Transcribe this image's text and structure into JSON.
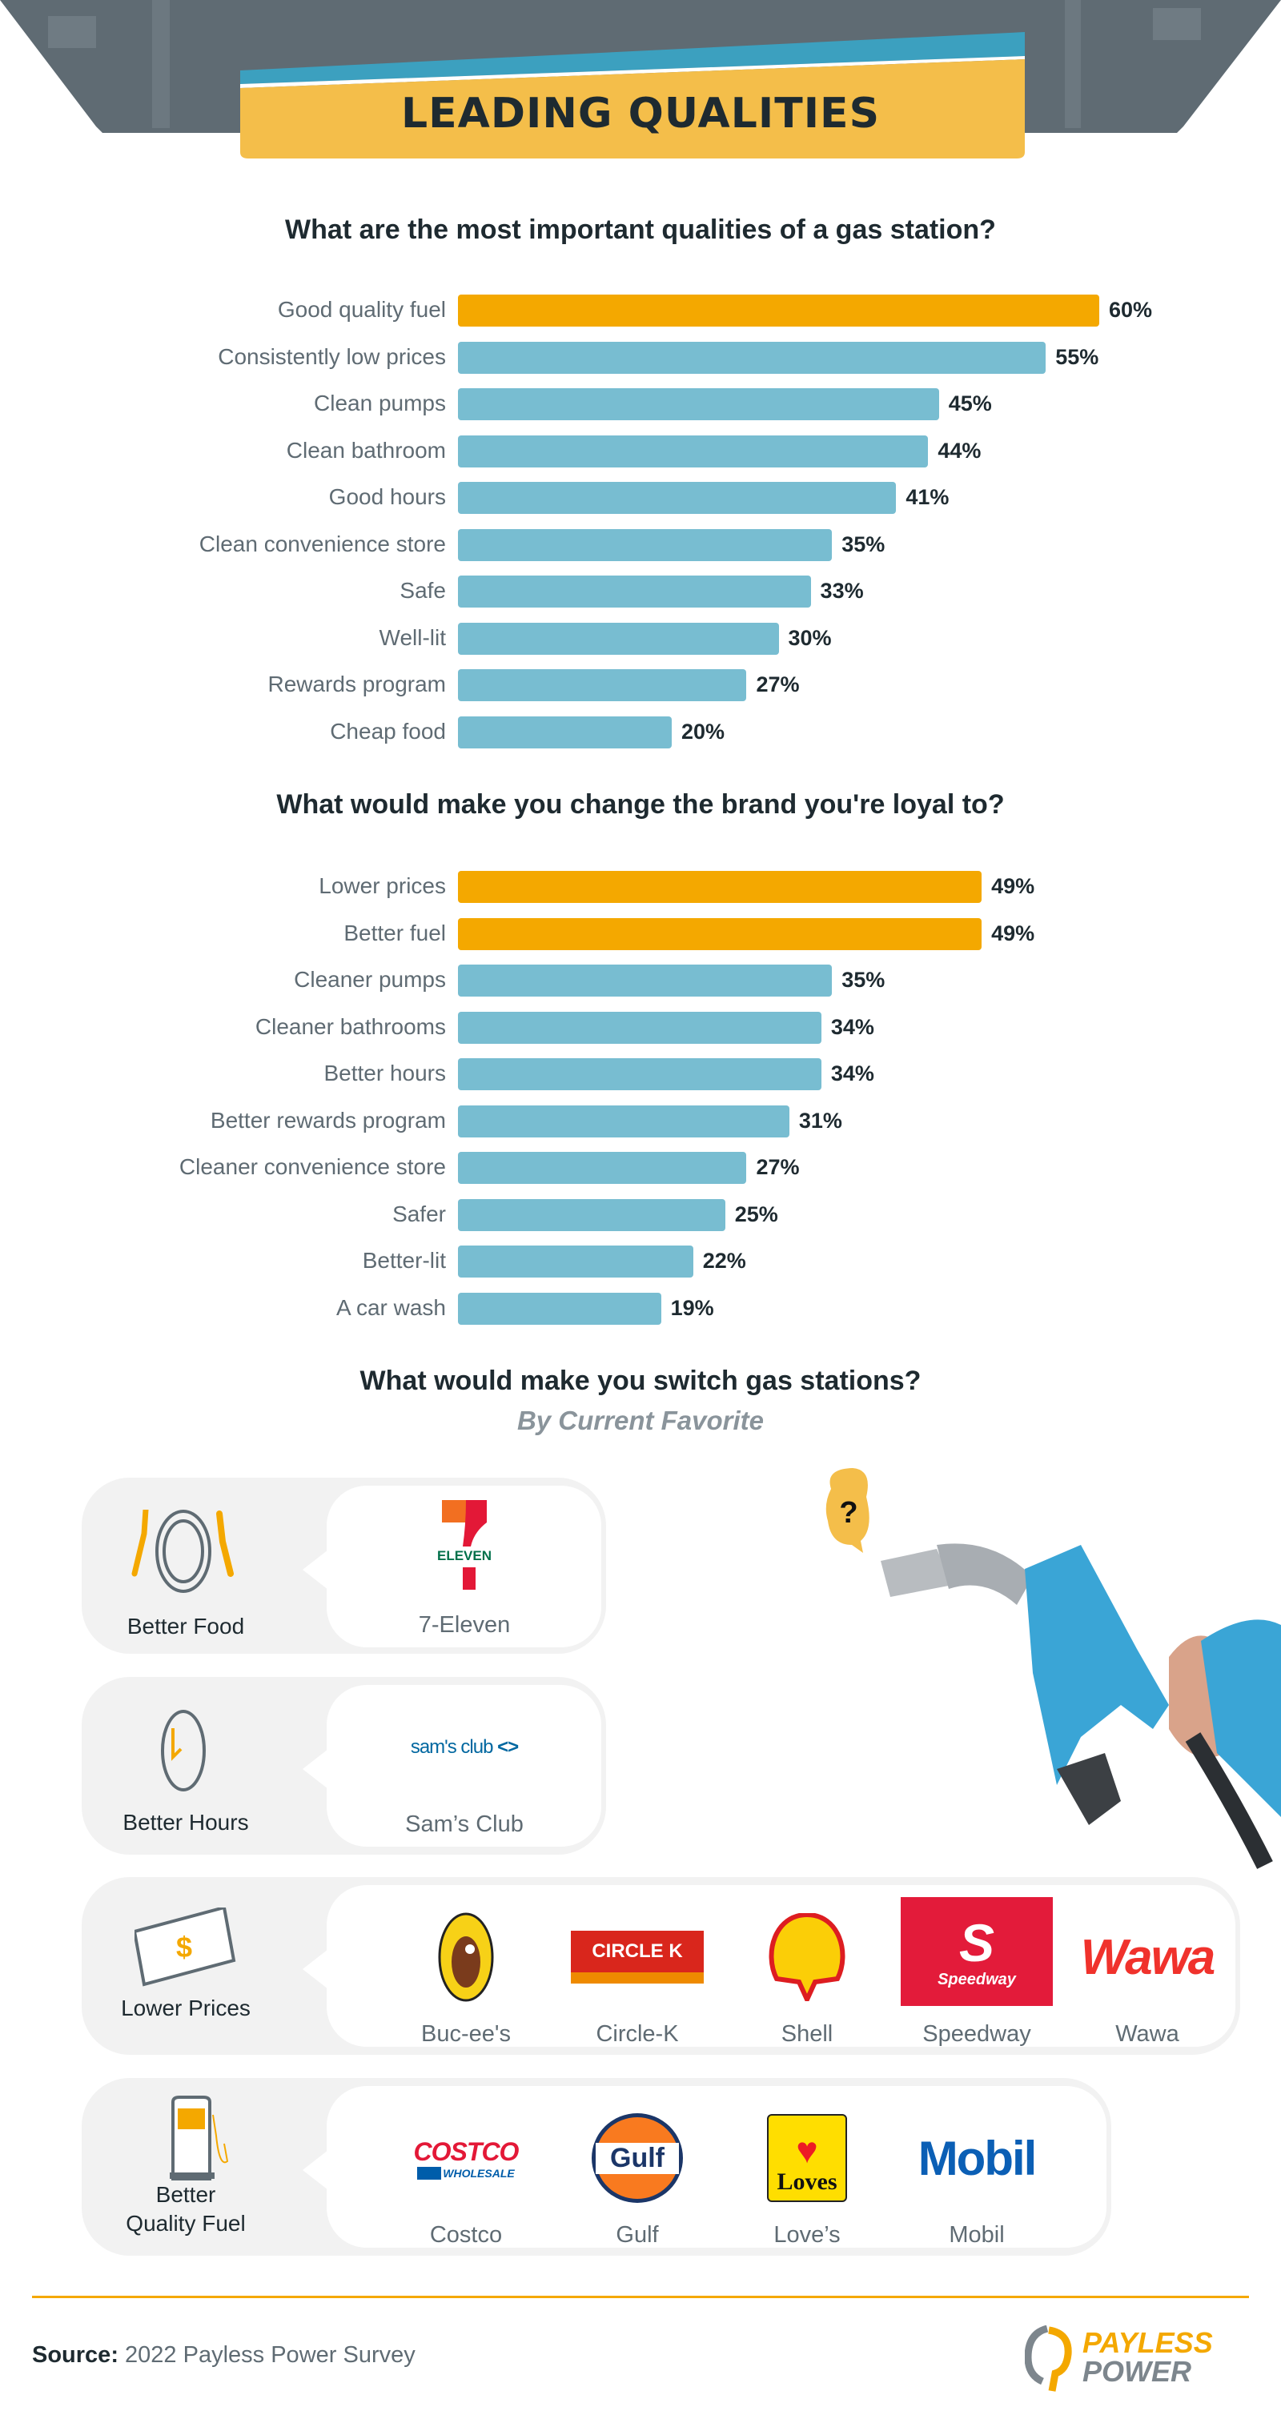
{
  "header": {
    "title": "LEADING QUALITIES"
  },
  "colors": {
    "highlight": "#f4a800",
    "bar": "#78bdd1",
    "banner": "#f4be4a",
    "banner_stripe": "#3ca0bf",
    "card": "#f2f2f2"
  },
  "chart_data": [
    {
      "type": "bar",
      "title": "What are the most important qualities of a gas station?",
      "categories": [
        "Good quality fuel",
        "Consistently low prices",
        "Clean pumps",
        "Clean bathroom",
        "Good hours",
        "Clean convenience store",
        "Safe",
        "Well-lit",
        "Rewards program",
        "Cheap food"
      ],
      "values": [
        60,
        55,
        45,
        44,
        41,
        35,
        33,
        30,
        27,
        20
      ],
      "value_labels": [
        "60%",
        "55%",
        "45%",
        "44%",
        "41%",
        "35%",
        "33%",
        "30%",
        "27%",
        "20%"
      ],
      "highlighted": [
        0
      ],
      "unit": "%",
      "xlim": [
        0,
        100
      ]
    },
    {
      "type": "bar",
      "title": "What would make you change the brand you're loyal to?",
      "categories": [
        "Lower prices",
        "Better fuel",
        "Cleaner pumps",
        "Cleaner bathrooms",
        "Better hours",
        "Better rewards program",
        "Cleaner convenience store",
        "Safer",
        "Better-lit",
        "A car wash"
      ],
      "values": [
        49,
        49,
        35,
        34,
        34,
        31,
        27,
        25,
        22,
        19
      ],
      "value_labels": [
        "49%",
        "49%",
        "35%",
        "34%",
        "34%",
        "31%",
        "27%",
        "25%",
        "22%",
        "19%"
      ],
      "highlighted": [
        0,
        1
      ],
      "unit": "%",
      "xlim": [
        0,
        100
      ]
    }
  ],
  "switch": {
    "title": "What would make you switch gas stations?",
    "subtitle": "By Current Favorite",
    "bubble": "?",
    "categories": [
      {
        "label": "Better Food",
        "icon": "plate-fork-knife-icon",
        "brands": [
          {
            "name": "7-Eleven",
            "logo_text": "ELEVEN"
          }
        ]
      },
      {
        "label": "Better Hours",
        "icon": "clock-icon",
        "brands": [
          {
            "name": "Sam’s Club",
            "logo_text": "sam's club"
          }
        ]
      },
      {
        "label": "Lower Prices",
        "icon": "money-bill-icon",
        "brands": [
          {
            "name": "Buc-ee's",
            "logo_text": ""
          },
          {
            "name": "Circle-K",
            "logo_text": "CIRCLE K"
          },
          {
            "name": "Shell",
            "logo_text": ""
          },
          {
            "name": "Speedway",
            "logo_text": "Speedway"
          },
          {
            "name": "Wawa",
            "logo_text": "Wawa"
          }
        ]
      },
      {
        "label_line1": "Better",
        "label_line2": "Quality Fuel",
        "icon": "fuel-pump-icon",
        "brands": [
          {
            "name": "Costco",
            "logo_text": "COSTCO",
            "logo_sub": "WHOLESALE"
          },
          {
            "name": "Gulf",
            "logo_text": "Gulf"
          },
          {
            "name": "Love’s",
            "logo_text": "Loves"
          },
          {
            "name": "Mobil",
            "logo_text": "Mobil"
          }
        ]
      }
    ]
  },
  "footer": {
    "source_label": "Source:",
    "source_text": "2022 Payless Power Survey",
    "logo_line1": "PAYLESS",
    "logo_line2": "POWER"
  }
}
